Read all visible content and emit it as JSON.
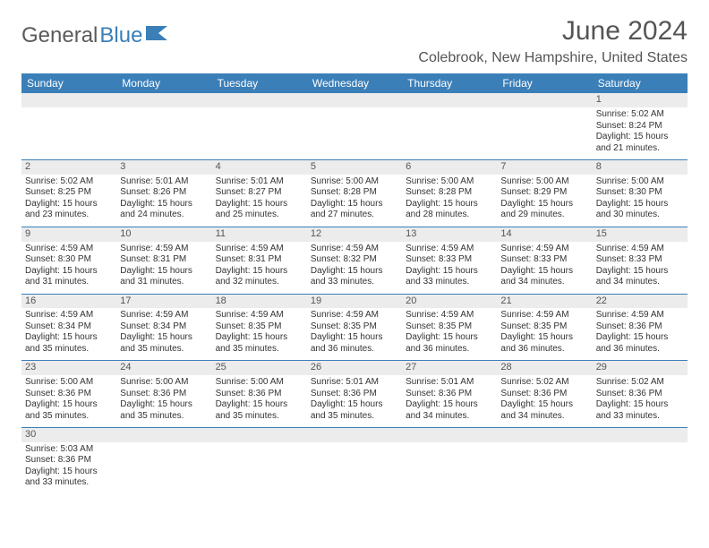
{
  "logo": {
    "text1": "General",
    "text2": "Blue"
  },
  "title": "June 2024",
  "location": "Colebrook, New Hampshire, United States",
  "colors": {
    "header_bg": "#3b7fb8",
    "header_fg": "#ffffff",
    "daynum_bg": "#ececec",
    "text": "#333333",
    "rule": "#3b7fb8"
  },
  "weekdays": [
    "Sunday",
    "Monday",
    "Tuesday",
    "Wednesday",
    "Thursday",
    "Friday",
    "Saturday"
  ],
  "weeks": [
    [
      null,
      null,
      null,
      null,
      null,
      null,
      {
        "num": "1",
        "sunrise": "5:02 AM",
        "sunset": "8:24 PM",
        "daylight": "15 hours and 21 minutes."
      }
    ],
    [
      {
        "num": "2",
        "sunrise": "5:02 AM",
        "sunset": "8:25 PM",
        "daylight": "15 hours and 23 minutes."
      },
      {
        "num": "3",
        "sunrise": "5:01 AM",
        "sunset": "8:26 PM",
        "daylight": "15 hours and 24 minutes."
      },
      {
        "num": "4",
        "sunrise": "5:01 AM",
        "sunset": "8:27 PM",
        "daylight": "15 hours and 25 minutes."
      },
      {
        "num": "5",
        "sunrise": "5:00 AM",
        "sunset": "8:28 PM",
        "daylight": "15 hours and 27 minutes."
      },
      {
        "num": "6",
        "sunrise": "5:00 AM",
        "sunset": "8:28 PM",
        "daylight": "15 hours and 28 minutes."
      },
      {
        "num": "7",
        "sunrise": "5:00 AM",
        "sunset": "8:29 PM",
        "daylight": "15 hours and 29 minutes."
      },
      {
        "num": "8",
        "sunrise": "5:00 AM",
        "sunset": "8:30 PM",
        "daylight": "15 hours and 30 minutes."
      }
    ],
    [
      {
        "num": "9",
        "sunrise": "4:59 AM",
        "sunset": "8:30 PM",
        "daylight": "15 hours and 31 minutes."
      },
      {
        "num": "10",
        "sunrise": "4:59 AM",
        "sunset": "8:31 PM",
        "daylight": "15 hours and 31 minutes."
      },
      {
        "num": "11",
        "sunrise": "4:59 AM",
        "sunset": "8:31 PM",
        "daylight": "15 hours and 32 minutes."
      },
      {
        "num": "12",
        "sunrise": "4:59 AM",
        "sunset": "8:32 PM",
        "daylight": "15 hours and 33 minutes."
      },
      {
        "num": "13",
        "sunrise": "4:59 AM",
        "sunset": "8:33 PM",
        "daylight": "15 hours and 33 minutes."
      },
      {
        "num": "14",
        "sunrise": "4:59 AM",
        "sunset": "8:33 PM",
        "daylight": "15 hours and 34 minutes."
      },
      {
        "num": "15",
        "sunrise": "4:59 AM",
        "sunset": "8:33 PM",
        "daylight": "15 hours and 34 minutes."
      }
    ],
    [
      {
        "num": "16",
        "sunrise": "4:59 AM",
        "sunset": "8:34 PM",
        "daylight": "15 hours and 35 minutes."
      },
      {
        "num": "17",
        "sunrise": "4:59 AM",
        "sunset": "8:34 PM",
        "daylight": "15 hours and 35 minutes."
      },
      {
        "num": "18",
        "sunrise": "4:59 AM",
        "sunset": "8:35 PM",
        "daylight": "15 hours and 35 minutes."
      },
      {
        "num": "19",
        "sunrise": "4:59 AM",
        "sunset": "8:35 PM",
        "daylight": "15 hours and 36 minutes."
      },
      {
        "num": "20",
        "sunrise": "4:59 AM",
        "sunset": "8:35 PM",
        "daylight": "15 hours and 36 minutes."
      },
      {
        "num": "21",
        "sunrise": "4:59 AM",
        "sunset": "8:35 PM",
        "daylight": "15 hours and 36 minutes."
      },
      {
        "num": "22",
        "sunrise": "4:59 AM",
        "sunset": "8:36 PM",
        "daylight": "15 hours and 36 minutes."
      }
    ],
    [
      {
        "num": "23",
        "sunrise": "5:00 AM",
        "sunset": "8:36 PM",
        "daylight": "15 hours and 35 minutes."
      },
      {
        "num": "24",
        "sunrise": "5:00 AM",
        "sunset": "8:36 PM",
        "daylight": "15 hours and 35 minutes."
      },
      {
        "num": "25",
        "sunrise": "5:00 AM",
        "sunset": "8:36 PM",
        "daylight": "15 hours and 35 minutes."
      },
      {
        "num": "26",
        "sunrise": "5:01 AM",
        "sunset": "8:36 PM",
        "daylight": "15 hours and 35 minutes."
      },
      {
        "num": "27",
        "sunrise": "5:01 AM",
        "sunset": "8:36 PM",
        "daylight": "15 hours and 34 minutes."
      },
      {
        "num": "28",
        "sunrise": "5:02 AM",
        "sunset": "8:36 PM",
        "daylight": "15 hours and 34 minutes."
      },
      {
        "num": "29",
        "sunrise": "5:02 AM",
        "sunset": "8:36 PM",
        "daylight": "15 hours and 33 minutes."
      }
    ],
    [
      {
        "num": "30",
        "sunrise": "5:03 AM",
        "sunset": "8:36 PM",
        "daylight": "15 hours and 33 minutes."
      },
      null,
      null,
      null,
      null,
      null,
      null
    ]
  ],
  "labels": {
    "sunrise": "Sunrise:",
    "sunset": "Sunset:",
    "daylight": "Daylight:"
  }
}
